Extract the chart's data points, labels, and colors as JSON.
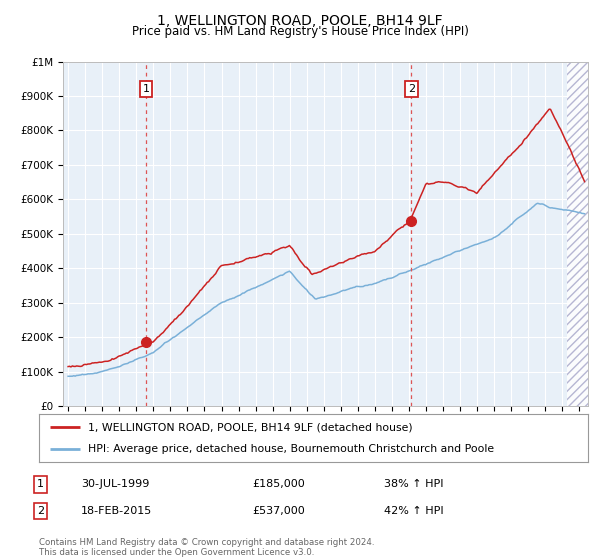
{
  "title": "1, WELLINGTON ROAD, POOLE, BH14 9LF",
  "subtitle": "Price paid vs. HM Land Registry's House Price Index (HPI)",
  "background_color": "#ffffff",
  "plot_bg_color": "#e8f0f8",
  "grid_color": "#c8d4e0",
  "red_line_color": "#cc2222",
  "blue_line_color": "#7ab0d8",
  "sale1_date_x": 1999.58,
  "sale1_price": 185000,
  "sale2_date_x": 2015.13,
  "sale2_price": 537000,
  "vline_color": "#dd5555",
  "ylim": [
    0,
    1000000
  ],
  "xlim_start": 1994.7,
  "xlim_end": 2025.5,
  "hatch_start": 2024.25,
  "ylabel_ticks": [
    0,
    100000,
    200000,
    300000,
    400000,
    500000,
    600000,
    700000,
    800000,
    900000,
    1000000
  ],
  "legend_label_red": "1, WELLINGTON ROAD, POOLE, BH14 9LF (detached house)",
  "legend_label_blue": "HPI: Average price, detached house, Bournemouth Christchurch and Poole",
  "footer": "Contains HM Land Registry data © Crown copyright and database right 2024.\nThis data is licensed under the Open Government Licence v3.0."
}
